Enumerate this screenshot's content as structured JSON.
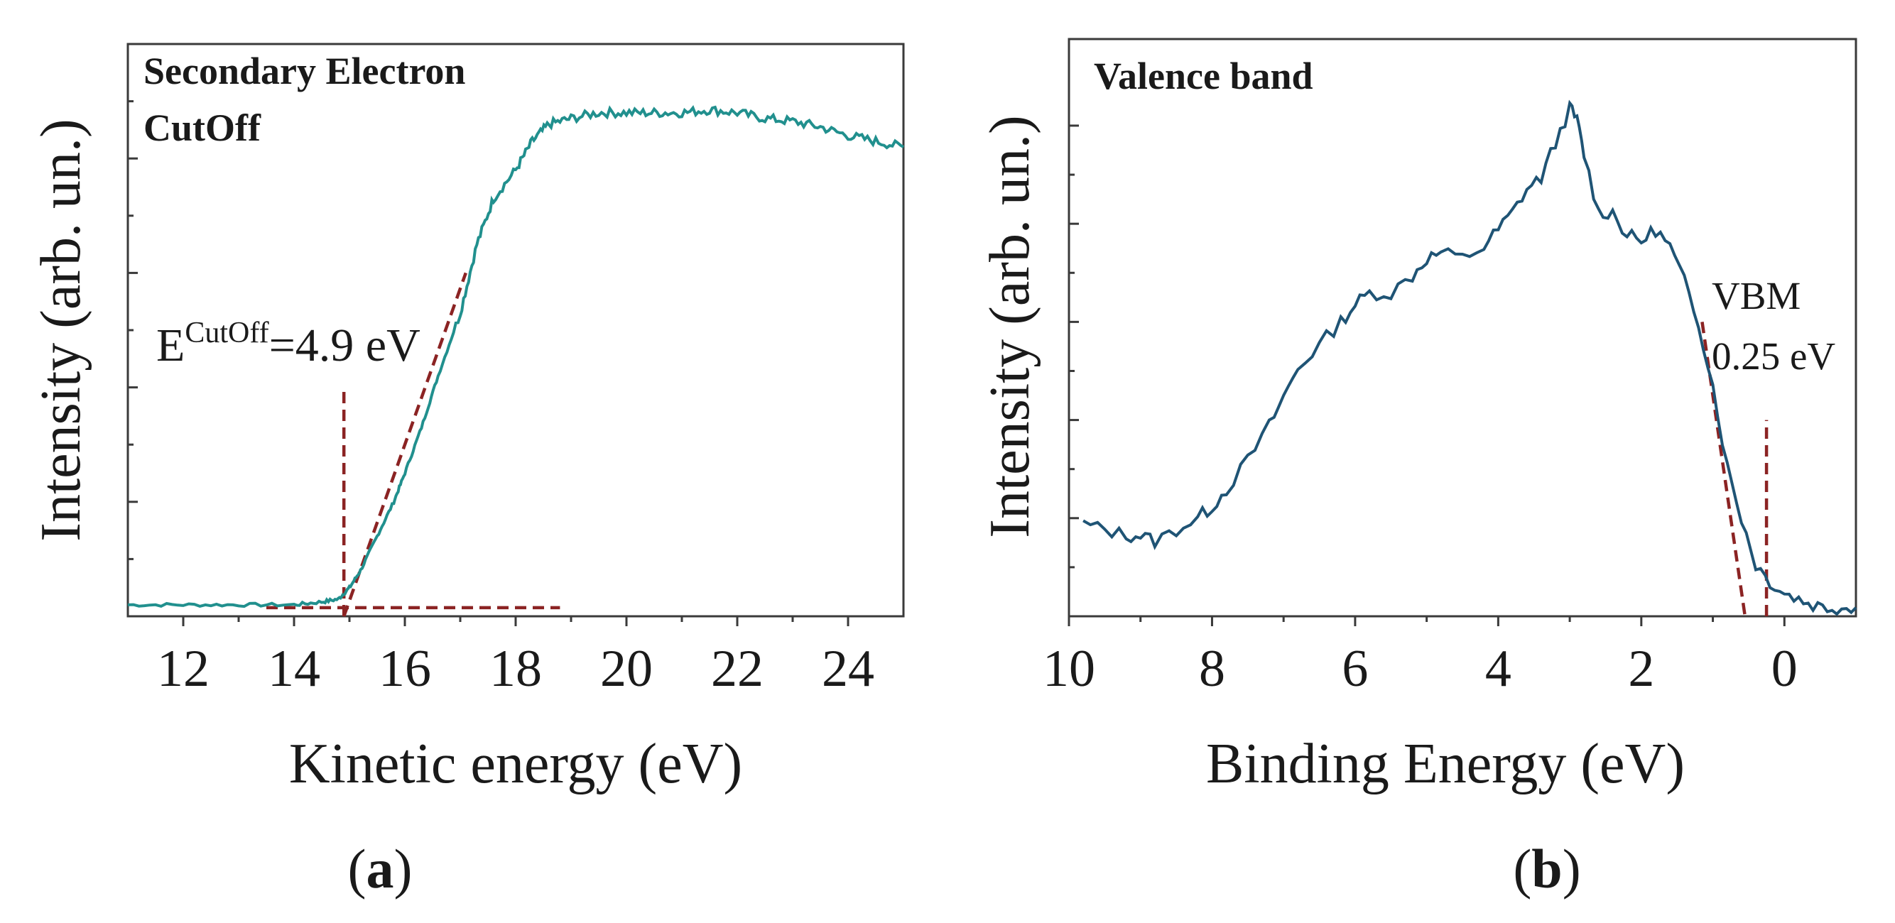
{
  "chart_data": [
    {
      "type": "line",
      "panel_label": "a",
      "title_lines": [
        "Secondary Electron",
        "CutOff"
      ],
      "xlabel": "Kinetic energy (eV)",
      "ylabel": "Intensity (arb. un.)",
      "xlim": [
        11,
        25
      ],
      "ylim": [
        0,
        1
      ],
      "x_ticks": [
        12,
        14,
        16,
        18,
        20,
        22,
        24
      ],
      "y_ticks": [
        0,
        0.2,
        0.4,
        0.6,
        0.8,
        1.0
      ],
      "y_ticklabels_shown": false,
      "series": [
        {
          "name": "Secondary electron spectrum",
          "color": "#21908e",
          "x": [
            11.0,
            12.0,
            13.0,
            14.0,
            14.5,
            14.8,
            15.0,
            15.2,
            15.5,
            15.8,
            16.0,
            16.3,
            16.6,
            17.0,
            17.3,
            17.6,
            18.0,
            18.3,
            18.6,
            19.0,
            19.5,
            20.0,
            20.5,
            21.0,
            21.5,
            22.0,
            22.5,
            23.0,
            23.5,
            24.0,
            24.5,
            25.0
          ],
          "y": [
            0.02,
            0.02,
            0.02,
            0.02,
            0.025,
            0.03,
            0.05,
            0.08,
            0.14,
            0.2,
            0.25,
            0.33,
            0.42,
            0.53,
            0.65,
            0.73,
            0.78,
            0.83,
            0.86,
            0.87,
            0.88,
            0.88,
            0.88,
            0.88,
            0.885,
            0.88,
            0.87,
            0.865,
            0.855,
            0.84,
            0.83,
            0.82
          ]
        }
      ],
      "fit_lines": [
        {
          "name": "baseline-fit",
          "x": [
            13.5,
            18.8
          ],
          "y": [
            0.015,
            0.015
          ]
        },
        {
          "name": "slope-fit",
          "x": [
            14.9,
            17.1
          ],
          "y": [
            0.0,
            0.6
          ]
        },
        {
          "name": "cutoff-marker",
          "x": [
            14.9,
            14.9
          ],
          "y": [
            0.0,
            0.4
          ]
        }
      ],
      "annotation": {
        "base": "E",
        "superscript": "CutOff",
        "value": "=4.9 eV"
      }
    },
    {
      "type": "line",
      "panel_label": "b",
      "title_lines": [
        "Valence band"
      ],
      "xlabel": "Binding Energy (eV)",
      "ylabel": "Intensity (arb. un.)",
      "xlim": [
        10,
        -1
      ],
      "ylim": [
        0,
        1
      ],
      "x_ticks": [
        10,
        8,
        6,
        4,
        2,
        0
      ],
      "y_ticks": [
        0,
        0.17,
        0.34,
        0.51,
        0.68,
        0.85
      ],
      "y_ticklabels_shown": false,
      "series": [
        {
          "name": "Valence band spectrum",
          "color": "#1f5475",
          "x": [
            9.8,
            9.5,
            9.2,
            9.0,
            8.8,
            8.5,
            8.2,
            8.0,
            7.8,
            7.5,
            7.2,
            7.0,
            6.8,
            6.5,
            6.2,
            6.0,
            5.8,
            5.5,
            5.2,
            5.0,
            4.8,
            4.5,
            4.2,
            4.0,
            3.8,
            3.6,
            3.4,
            3.2,
            3.0,
            2.9,
            2.8,
            2.6,
            2.4,
            2.2,
            2.0,
            1.8,
            1.6,
            1.4,
            1.2,
            1.0,
            0.8,
            0.6,
            0.4,
            0.2,
            0.0,
            -0.2,
            -0.4,
            -0.6,
            -0.8,
            -1.0
          ],
          "y": [
            0.16,
            0.15,
            0.14,
            0.14,
            0.13,
            0.15,
            0.17,
            0.19,
            0.22,
            0.27,
            0.33,
            0.38,
            0.43,
            0.47,
            0.51,
            0.54,
            0.56,
            0.56,
            0.59,
            0.62,
            0.63,
            0.62,
            0.64,
            0.67,
            0.7,
            0.74,
            0.76,
            0.82,
            0.88,
            0.86,
            0.8,
            0.7,
            0.7,
            0.66,
            0.65,
            0.67,
            0.64,
            0.58,
            0.51,
            0.4,
            0.26,
            0.17,
            0.09,
            0.06,
            0.04,
            0.03,
            0.02,
            0.015,
            0.015,
            0.015
          ]
        }
      ],
      "fit_lines": [
        {
          "name": "edge-fit",
          "x": [
            1.15,
            0.55
          ],
          "y": [
            0.51,
            0.0
          ]
        },
        {
          "name": "vbm-marker",
          "x": [
            0.25,
            0.25
          ],
          "y": [
            0.0,
            0.34
          ]
        }
      ],
      "annotation": {
        "line1": "VBM",
        "line2": "0.25 eV"
      }
    }
  ],
  "captions": {
    "a": {
      "open": "(",
      "letter": "a",
      "close": ")"
    },
    "b": {
      "open": "(",
      "letter": "b",
      "close": ")"
    }
  }
}
